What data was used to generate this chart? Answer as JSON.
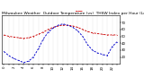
{
  "title": "Milwaukee Weather  Outdoor Temperature (vs)  THSW Index per Hour (Last 24 Hours)",
  "red_data": [
    52,
    50,
    49,
    48,
    47,
    48,
    50,
    53,
    56,
    60,
    63,
    65,
    66,
    66,
    65,
    63,
    60,
    57,
    55,
    54,
    53,
    52,
    52,
    52
  ],
  "blue_data": [
    28,
    22,
    18,
    15,
    12,
    14,
    20,
    32,
    46,
    56,
    62,
    66,
    68,
    66,
    63,
    58,
    50,
    38,
    30,
    26,
    24,
    22,
    35,
    42
  ],
  "hours": [
    0,
    1,
    2,
    3,
    4,
    5,
    6,
    7,
    8,
    9,
    10,
    11,
    12,
    13,
    14,
    15,
    16,
    17,
    18,
    19,
    20,
    21,
    22,
    23
  ],
  "ylim": [
    10,
    80
  ],
  "ytick_vals": [
    20,
    30,
    40,
    50,
    60,
    70
  ],
  "ytick_labels": [
    "20",
    "30",
    "40",
    "50",
    "60",
    "70"
  ],
  "red_color": "#cc0000",
  "blue_color": "#0000cc",
  "bg_color": "#ffffff",
  "grid_color": "#999999",
  "title_fontsize": 3.2,
  "tick_fontsize": 2.8,
  "linewidth": 0.65,
  "markersize": 1.0
}
